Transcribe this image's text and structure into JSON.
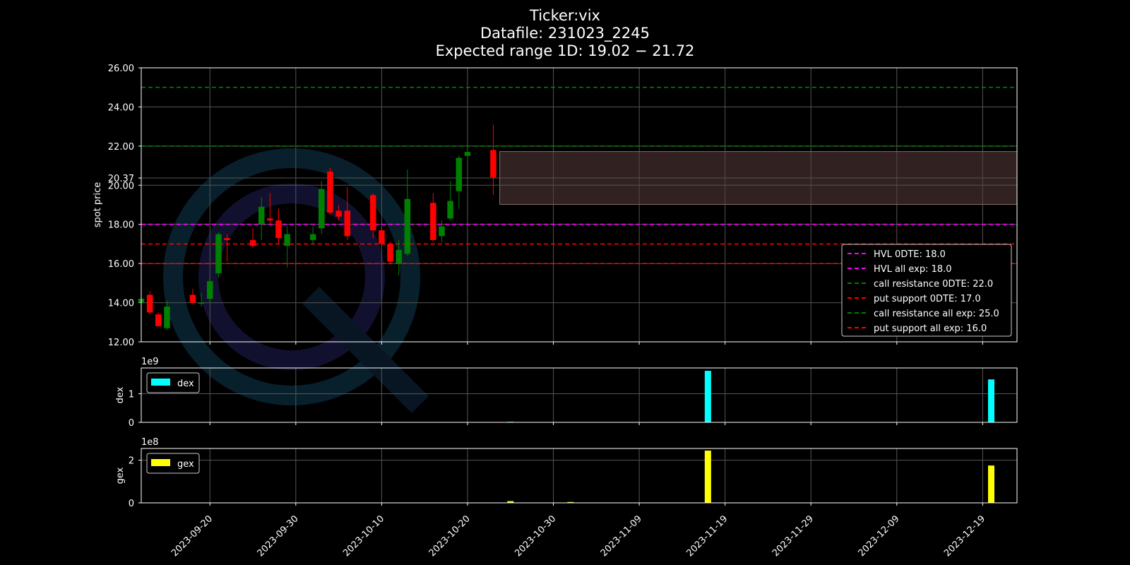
{
  "titles": {
    "line1": "Ticker:vix",
    "line2": "Datafile: 231023_2245",
    "line3": "Expected range 1D: 19.02 − 21.72"
  },
  "colors": {
    "background": "#000000",
    "bull": "#008000",
    "bear": "#ff0000",
    "hvl": "#ff00ff",
    "call": "#008000",
    "put": "#ff0000",
    "dex": "#00ffff",
    "gex": "#ffff00",
    "range_fill": "#5a3c3c",
    "axes": "#ffffff",
    "grid": "#555555"
  },
  "chart_data": [
    {
      "type": "candlestick",
      "ylabel": "spot price",
      "ylim": [
        12,
        26
      ],
      "xlim": [
        "2023-09-12",
        "2023-12-23"
      ],
      "yticks": [
        "12.00",
        "14.00",
        "16.00",
        "18.00",
        "20.00",
        "20.37",
        "22.00",
        "24.00",
        "26.00"
      ],
      "grid": true,
      "candles": [
        {
          "date": "2023-09-12",
          "open": 14.0,
          "high": 14.3,
          "low": 13.9,
          "close": 14.2
        },
        {
          "date": "2023-09-13",
          "open": 14.4,
          "high": 14.6,
          "low": 13.4,
          "close": 13.5
        },
        {
          "date": "2023-09-14",
          "open": 13.4,
          "high": 13.5,
          "low": 12.8,
          "close": 12.8
        },
        {
          "date": "2023-09-15",
          "open": 12.7,
          "high": 14.1,
          "low": 12.6,
          "close": 13.8
        },
        {
          "date": "2023-09-18",
          "open": 14.4,
          "high": 14.7,
          "low": 13.9,
          "close": 14.0
        },
        {
          "date": "2023-09-19",
          "open": 14.0,
          "high": 14.5,
          "low": 13.8,
          "close": 14.0
        },
        {
          "date": "2023-09-20",
          "open": 14.2,
          "high": 15.3,
          "low": 14.0,
          "close": 15.1
        },
        {
          "date": "2023-09-21",
          "open": 15.5,
          "high": 17.6,
          "low": 15.3,
          "close": 17.5
        },
        {
          "date": "2023-09-22",
          "open": 17.3,
          "high": 17.5,
          "low": 16.1,
          "close": 17.2
        },
        {
          "date": "2023-09-25",
          "open": 17.2,
          "high": 17.8,
          "low": 16.8,
          "close": 16.9
        },
        {
          "date": "2023-09-26",
          "open": 18.0,
          "high": 19.4,
          "low": 17.2,
          "close": 18.9
        },
        {
          "date": "2023-09-27",
          "open": 18.3,
          "high": 19.6,
          "low": 18.0,
          "close": 18.2
        },
        {
          "date": "2023-09-28",
          "open": 18.2,
          "high": 18.8,
          "low": 17.0,
          "close": 17.3
        },
        {
          "date": "2023-09-29",
          "open": 16.9,
          "high": 17.9,
          "low": 15.8,
          "close": 17.5
        },
        {
          "date": "2023-10-02",
          "open": 17.2,
          "high": 17.9,
          "low": 17.0,
          "close": 17.5
        },
        {
          "date": "2023-10-03",
          "open": 17.8,
          "high": 20.2,
          "low": 17.5,
          "close": 19.8
        },
        {
          "date": "2023-10-04",
          "open": 20.7,
          "high": 20.9,
          "low": 18.5,
          "close": 18.6
        },
        {
          "date": "2023-10-05",
          "open": 18.7,
          "high": 19.0,
          "low": 18.2,
          "close": 18.4
        },
        {
          "date": "2023-10-06",
          "open": 18.7,
          "high": 19.9,
          "low": 17.2,
          "close": 17.4
        },
        {
          "date": "2023-10-09",
          "open": 19.5,
          "high": 19.6,
          "low": 17.3,
          "close": 17.7
        },
        {
          "date": "2023-10-10",
          "open": 17.7,
          "high": 17.8,
          "low": 17.0,
          "close": 17.0
        },
        {
          "date": "2023-10-11",
          "open": 17.0,
          "high": 17.1,
          "low": 16.0,
          "close": 16.1
        },
        {
          "date": "2023-10-12",
          "open": 16.0,
          "high": 17.2,
          "low": 15.4,
          "close": 16.7
        },
        {
          "date": "2023-10-13",
          "open": 16.5,
          "high": 20.8,
          "low": 16.4,
          "close": 19.3
        },
        {
          "date": "2023-10-16",
          "open": 19.1,
          "high": 19.6,
          "low": 17.1,
          "close": 17.2
        },
        {
          "date": "2023-10-17",
          "open": 17.4,
          "high": 18.2,
          "low": 17.1,
          "close": 17.9
        },
        {
          "date": "2023-10-18",
          "open": 18.3,
          "high": 20.2,
          "low": 18.2,
          "close": 19.2
        },
        {
          "date": "2023-10-19",
          "open": 19.7,
          "high": 21.5,
          "low": 18.8,
          "close": 21.4
        },
        {
          "date": "2023-10-20",
          "open": 21.5,
          "high": 21.8,
          "low": 21.4,
          "close": 21.7
        },
        {
          "date": "2023-10-23",
          "open": 21.8,
          "high": 23.1,
          "low": 19.5,
          "close": 20.4
        }
      ],
      "levels": [
        {
          "name": "HVL 0DTE: 18.0",
          "value": 18.0,
          "color": "#ff00ff"
        },
        {
          "name": "HVL all exp: 18.0",
          "value": 18.0,
          "color": "#ff00ff"
        },
        {
          "name": "call resistance 0DTE: 22.0",
          "value": 22.0,
          "color": "#008000"
        },
        {
          "name": "put support 0DTE: 17.0",
          "value": 17.0,
          "color": "#ff0000"
        },
        {
          "name": "call resistance all exp: 25.0",
          "value": 25.0,
          "color": "#008000"
        },
        {
          "name": "put support all exp: 16.0",
          "value": 16.0,
          "color": "#ff0000"
        }
      ],
      "expected_range": {
        "from": "2023-10-24",
        "to": "2023-12-23",
        "low": 19.02,
        "high": 21.72
      },
      "legend_position": "lower right"
    },
    {
      "type": "bar",
      "name": "dex",
      "ylabel": "dex",
      "exponent_label": "1e9",
      "ylim": [
        0,
        1.9
      ],
      "yticks": [
        "0",
        "1"
      ],
      "legend_position": "upper left",
      "bars": [
        {
          "date": "2023-10-25",
          "value": 0.02
        },
        {
          "date": "2023-11-17",
          "value": 1.8
        },
        {
          "date": "2023-12-20",
          "value": 1.5
        }
      ]
    },
    {
      "type": "bar",
      "name": "gex",
      "ylabel": "gex",
      "exponent_label": "1e8",
      "ylim": [
        0,
        2.55
      ],
      "yticks": [
        "0",
        "2"
      ],
      "legend_position": "upper left",
      "bars": [
        {
          "date": "2023-10-25",
          "value": 0.08
        },
        {
          "date": "2023-11-01",
          "value": 0.04
        },
        {
          "date": "2023-11-17",
          "value": 2.45
        },
        {
          "date": "2023-12-20",
          "value": 1.75
        }
      ]
    }
  ],
  "xticks": [
    "2023-09-20",
    "2023-09-30",
    "2023-10-10",
    "2023-10-20",
    "2023-10-30",
    "2023-11-09",
    "2023-11-19",
    "2023-11-29",
    "2023-12-09",
    "2023-12-19"
  ]
}
